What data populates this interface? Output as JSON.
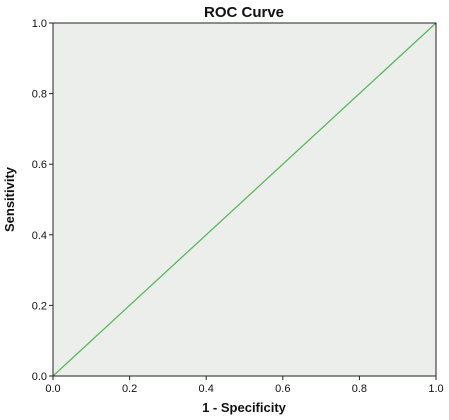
{
  "chart_data": {
    "type": "line",
    "title": "ROC Curve",
    "xlabel": "1 - Specificity",
    "ylabel": "Sensitivity",
    "xlim": [
      0,
      1
    ],
    "ylim": [
      0,
      1
    ],
    "xticks": [
      "0.0",
      "0.2",
      "0.4",
      "0.6",
      "0.8",
      "1.0"
    ],
    "yticks": [
      "0.0",
      "0.2",
      "0.4",
      "0.6",
      "0.8",
      "1.0"
    ],
    "grid": false,
    "series": [
      {
        "x": [
          0,
          1
        ],
        "y": [
          0,
          1
        ],
        "color": "#5cb85c"
      }
    ],
    "colors": {
      "plot_bg": "#eceeec",
      "frame": "#222222"
    }
  }
}
